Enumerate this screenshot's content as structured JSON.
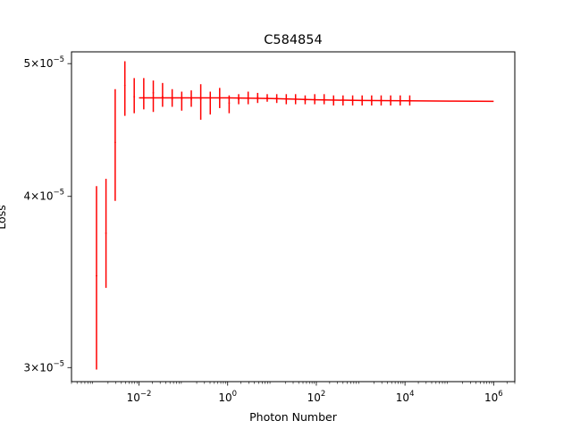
{
  "chart_data": {
    "type": "line",
    "title": "C584854",
    "xlabel": "Photon Number",
    "ylabel": "Loss",
    "x_scale": "log",
    "y_scale": "log",
    "xlim": [
      0.0003,
      3000000
    ],
    "ylim": [
      2.93e-05,
      5.1e-05
    ],
    "grid": false,
    "color": "#ff0000",
    "x_ticks": [
      {
        "value": 0.01,
        "base": "10",
        "exp": "−2"
      },
      {
        "value": 1,
        "base": "10",
        "exp": "0"
      },
      {
        "value": 100,
        "base": "10",
        "exp": "2"
      },
      {
        "value": 10000,
        "base": "10",
        "exp": "4"
      },
      {
        "value": 1000000,
        "base": "10",
        "exp": "6"
      }
    ],
    "y_ticks": [
      {
        "value": 3e-05,
        "mant": "3",
        "base": "10",
        "exp": "−5"
      },
      {
        "value": 4e-05,
        "mant": "4",
        "base": "10",
        "exp": "−5"
      },
      {
        "value": 5e-05,
        "mant": "5",
        "base": "10",
        "exp": "−5"
      }
    ],
    "series": [
      {
        "type": "line",
        "x": [
          0.01,
          0.1,
          1,
          10,
          100,
          1000,
          10000,
          100000,
          1000000
        ],
        "y": [
          4.72e-05,
          4.72e-05,
          4.72e-05,
          4.715e-05,
          4.705e-05,
          4.7e-05,
          4.697e-05,
          4.695e-05,
          4.693e-05
        ]
      },
      {
        "type": "errorbar",
        "x": [
          0.0011,
          0.0018,
          0.0029,
          0.0048,
          0.0078,
          0.0128,
          0.021,
          0.034,
          0.056,
          0.092,
          0.151,
          0.247,
          0.405,
          0.66,
          1.08,
          1.77,
          2.9,
          4.75,
          7.8,
          12.8,
          21,
          34,
          56,
          92,
          150,
          245,
          400,
          660,
          1080,
          1770,
          2900,
          4750,
          7800,
          12800
        ],
        "y": [
          3.5e-05,
          3.76e-05,
          4.38e-05,
          4.82e-05,
          4.73e-05,
          4.72e-05,
          4.76e-05,
          4.73e-05,
          4.71e-05,
          4.71e-05,
          4.71e-05,
          4.71e-05,
          4.72e-05,
          4.71e-05,
          4.68e-05,
          4.71e-05,
          4.72e-05,
          4.73e-05,
          4.72e-05,
          4.72e-05,
          4.71e-05,
          4.71e-05,
          4.7e-05,
          4.71e-05,
          4.71e-05,
          4.7e-05,
          4.7e-05,
          4.7e-05,
          4.7e-05,
          4.7e-05,
          4.7e-05,
          4.7e-05,
          4.7e-05,
          4.7e-05
        ],
        "yerr_low": [
          2.99e-05,
          3.43e-05,
          3.97e-05,
          4.58e-05,
          4.6e-05,
          4.63e-05,
          4.61e-05,
          4.65e-05,
          4.65e-05,
          4.62e-05,
          4.65e-05,
          4.55e-05,
          4.59e-05,
          4.64e-05,
          4.6e-05,
          4.67e-05,
          4.67e-05,
          4.68e-05,
          4.69e-05,
          4.68e-05,
          4.67e-05,
          4.67e-05,
          4.67e-05,
          4.67e-05,
          4.67e-05,
          4.66e-05,
          4.66e-05,
          4.66e-05,
          4.66e-05,
          4.66e-05,
          4.66e-05,
          4.66e-05,
          4.66e-05,
          4.66e-05
        ],
        "yerr_high": [
          4.07e-05,
          4.12e-05,
          4.79e-05,
          5.02e-05,
          4.88e-05,
          4.88e-05,
          4.86e-05,
          4.84e-05,
          4.79e-05,
          4.77e-05,
          4.78e-05,
          4.83e-05,
          4.77e-05,
          4.8e-05,
          4.74e-05,
          4.75e-05,
          4.77e-05,
          4.76e-05,
          4.75e-05,
          4.75e-05,
          4.75e-05,
          4.75e-05,
          4.74e-05,
          4.75e-05,
          4.75e-05,
          4.74e-05,
          4.74e-05,
          4.74e-05,
          4.74e-05,
          4.74e-05,
          4.74e-05,
          4.74e-05,
          4.74e-05,
          4.74e-05
        ]
      }
    ]
  }
}
